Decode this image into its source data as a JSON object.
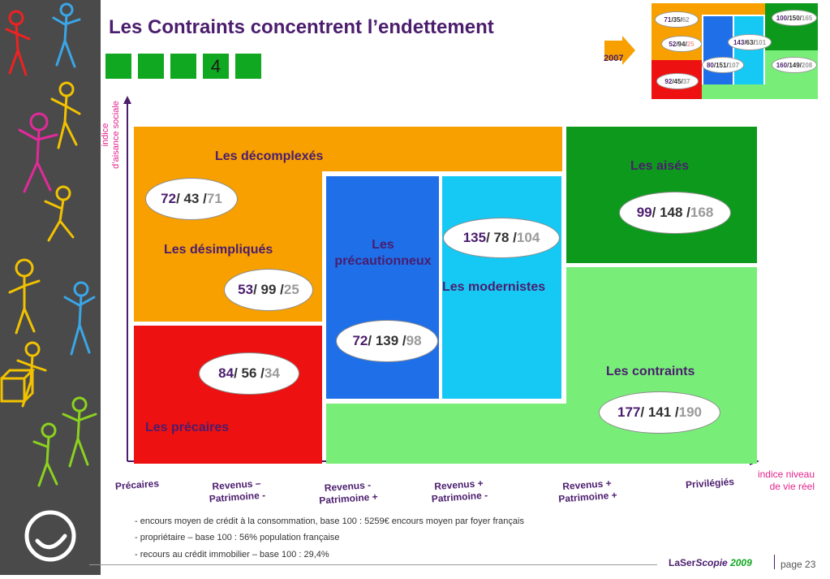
{
  "title": "Les Contraints concentrent l’endettement",
  "slide_number": "4",
  "year": "2007",
  "y_axis_label": "indice\nd’aisance sociale",
  "x_axis_label": "indice niveau\nde vie réel",
  "groups": [
    {
      "name": "Les décomplexés",
      "v1": "72",
      "v2": "43",
      "v3": "71"
    },
    {
      "name": "Les désimpliqués",
      "v1": "53",
      "v2": "99",
      "v3": "25"
    },
    {
      "name": "Les précaires",
      "v1": "84",
      "v2": "56",
      "v3": "34"
    },
    {
      "name": "Les précautionneux",
      "v1": "72",
      "v2": "139",
      "v3": "98"
    },
    {
      "name": "Les modernistes",
      "v1": "135",
      "v2": "78",
      "v3": "104"
    },
    {
      "name": "Les aisés",
      "v1": "99",
      "v2": "148",
      "v3": "168"
    },
    {
      "name": "Les contraints",
      "v1": "177",
      "v2": "141",
      "v3": "190"
    }
  ],
  "mini_map": [
    {
      "v1": "71",
      "v2": "35",
      "v3": "62"
    },
    {
      "v1": "52",
      "v2": "94",
      "v3": "25"
    },
    {
      "v1": "92",
      "v2": "45",
      "v3": "37"
    },
    {
      "v1": "143",
      "v2": "63",
      "v3": "101"
    },
    {
      "v1": "80",
      "v2": "151",
      "v3": "107"
    },
    {
      "v1": "100",
      "v2": "150",
      "v3": "165"
    },
    {
      "v1": "160",
      "v2": "149",
      "v3": "208"
    }
  ],
  "x_categories": [
    "Précaires",
    "Revenus –\nPatrimoine -",
    "Revenus -\nPatrimoine +",
    "Revenus +\nPatrimoine -",
    "Revenus +\nPatrimoine +",
    "Privilégiés"
  ],
  "notes": [
    "- encours moyen de crédit à la consommation, base 100 : 5259€ encours moyen par foyer français",
    "- propriétaire – base 100 : 56% population française",
    "- recours au crédit immobilier – base 100 : 29,4%"
  ],
  "footer": {
    "brand_a": "LaSer",
    "brand_b": "Scopie",
    "year": "2009",
    "page": "page 23"
  },
  "colors": {
    "orange": "#f7a000",
    "red": "#ee1111",
    "blue": "#1e6fe8",
    "cyan": "#16c8f4",
    "dark_green": "#0d9a1c",
    "light_green": "#78ee78",
    "purple": "#4b1d6e"
  }
}
